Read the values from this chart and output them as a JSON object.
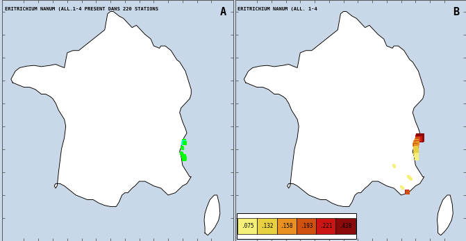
{
  "title_A": "ERITRICHIUM NANUM (ALL.1-4 PRESENT DANS 220 STATIONS",
  "title_B": "ERITRICHIUM NANUM (ALL. 1-4",
  "label_A": "A",
  "label_B": "B",
  "bg_color": "#c8d8e8",
  "map_bg": "#c8d8e8",
  "legend_values": [
    ".075",
    ".132",
    ".158",
    ".193",
    ".221",
    ".428"
  ],
  "legend_colors": [
    "#f5f07a",
    "#e8d040",
    "#e89020",
    "#d05010",
    "#cc1515",
    "#8b0a0a"
  ],
  "xlim": [
    -5.5,
    10.5
  ],
  "ylim": [
    41.0,
    51.5
  ]
}
